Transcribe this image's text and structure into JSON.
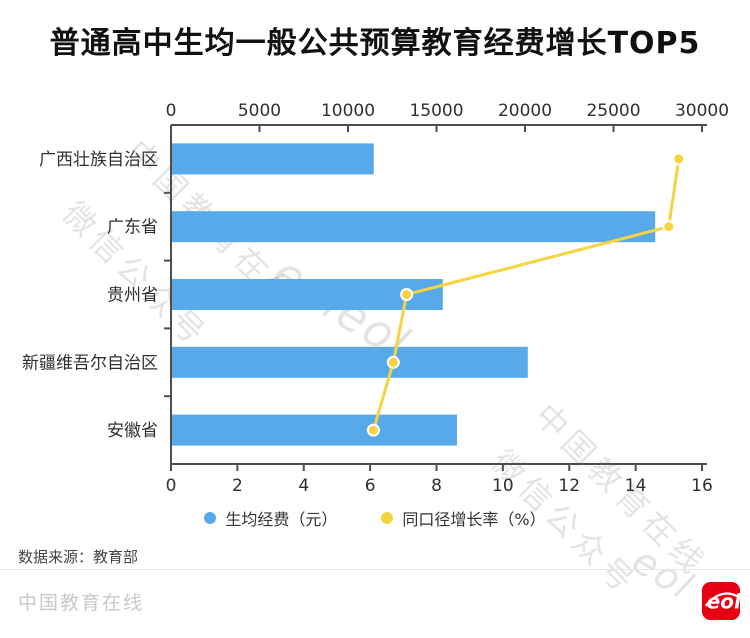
{
  "title": "普通高中生均一般公共预算教育经费增长TOP5",
  "chart_data": {
    "type": "bar",
    "orientation": "horizontal",
    "title": "普通高中生均一般公共预算教育经费增长TOP5",
    "categories": [
      "广西壮族自治区",
      "广东省",
      "贵州省",
      "新疆维吾尔自治区",
      "安徽省"
    ],
    "series": [
      {
        "name": "生均经费（元）",
        "type": "bar",
        "axis": "top",
        "values": [
          11400,
          27300,
          15300,
          20100,
          16100
        ]
      },
      {
        "name": "同口径增长率（%）",
        "type": "line",
        "axis": "bottom",
        "values": [
          15.3,
          15.0,
          7.1,
          6.7,
          6.1
        ]
      }
    ],
    "bar_axis": {
      "position": "top",
      "min": 0,
      "max": 30000,
      "ticks": [
        0,
        5000,
        10000,
        15000,
        20000,
        25000,
        30000
      ]
    },
    "rate_axis": {
      "position": "bottom",
      "min": 0,
      "max": 16,
      "ticks": [
        0,
        2,
        4,
        6,
        8,
        10,
        12,
        14,
        16
      ]
    },
    "grid": false,
    "legend_position": "bottom",
    "colors": {
      "bar": "#58a9ea",
      "line": "#f5d341",
      "axis": "#4d4d4d",
      "tick_label": "#303030"
    }
  },
  "legend": {
    "items": [
      {
        "label": "生均经费（元）",
        "color": "#58a9ea"
      },
      {
        "label": "同口径增长率（%）",
        "color": "#f5d341"
      }
    ]
  },
  "watermarks": [
    "中国教育在线",
    "微信公众号",
    "eoleol",
    "中国教育在线",
    "微信公众号",
    "eol"
  ],
  "source": "数据来源：教育部",
  "footer": {
    "brand": "中国教育在线",
    "logo_text": "eol",
    "logo_color": "#e60012"
  }
}
